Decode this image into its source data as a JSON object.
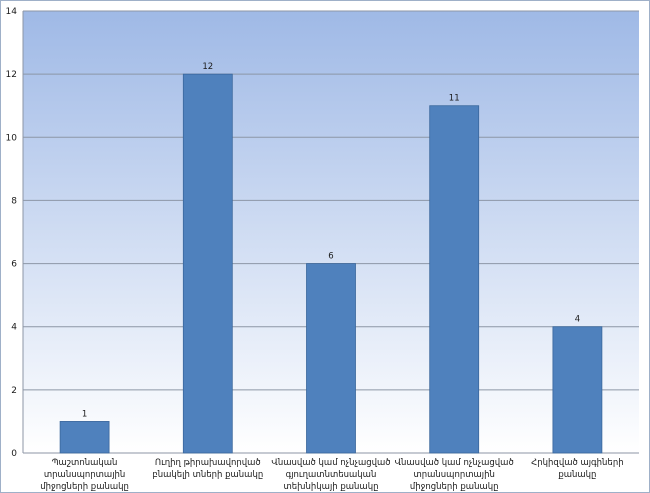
{
  "chart_data": {
    "type": "bar",
    "categories": [
      "Պաշտոնական տրանսպորտային միջոցների քանակը",
      "Ուղիղ թիրախավորված բնակելի տների քանակը",
      "Վնասված կամ ոչնչացված գյուղատնտեսական տեխնիկայի քանակը",
      "Վնասված կամ ոչնչացված տրանսպորտային միջոցների քանակը",
      "Հրկիզված այգիների քանակը"
    ],
    "values": [
      1,
      12,
      6,
      11,
      4
    ],
    "data_labels": [
      "1",
      "12",
      "6",
      "11",
      "4"
    ],
    "y_ticks": [
      "0",
      "2",
      "4",
      "6",
      "8",
      "10",
      "12",
      "14"
    ],
    "ylim": [
      0,
      14
    ],
    "grid": true,
    "legend": "none",
    "title": "",
    "xlabel": "",
    "ylabel": "",
    "colors": {
      "bar": "#4f81bd",
      "bar_edge": "#3a679c",
      "gradient_top": "#9fb9e6",
      "gradient_bottom": "#ffffff",
      "gridline": "#8c96a6",
      "text": "#1a1a1a"
    }
  }
}
